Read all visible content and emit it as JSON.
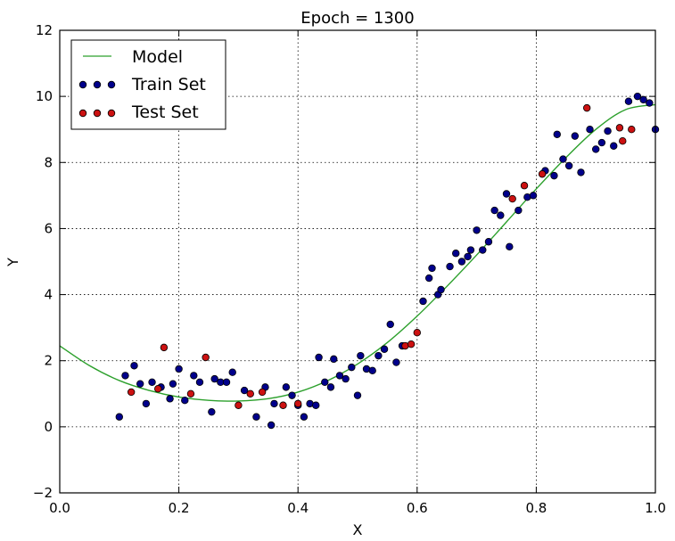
{
  "chart_data": {
    "type": "scatter",
    "title": "Epoch = 1300",
    "xlabel": "X",
    "ylabel": "Y",
    "xlim": [
      0.0,
      1.0
    ],
    "ylim": [
      -2,
      12
    ],
    "xticks": [
      "0.0",
      "0.2",
      "0.4",
      "0.6",
      "0.8",
      "1.0"
    ],
    "yticks": [
      "−2",
      "0",
      "2",
      "4",
      "6",
      "8",
      "10",
      "12"
    ],
    "grid": true,
    "legend_position": "top-left",
    "colors": {
      "model": "#2ca02c",
      "train": "#00008b",
      "test": "#cc1111"
    },
    "series": [
      {
        "name": "Model",
        "kind": "line",
        "x": [
          0.0,
          0.05,
          0.1,
          0.15,
          0.2,
          0.25,
          0.3,
          0.35,
          0.4,
          0.45,
          0.5,
          0.55,
          0.6,
          0.65,
          0.7,
          0.75,
          0.8,
          0.85,
          0.9,
          0.95,
          1.0
        ],
        "y": [
          2.45,
          1.85,
          1.4,
          1.1,
          0.9,
          0.8,
          0.78,
          0.85,
          1.05,
          1.4,
          1.9,
          2.55,
          3.35,
          4.25,
          5.2,
          6.2,
          7.2,
          8.15,
          9.0,
          9.6,
          9.75
        ]
      },
      {
        "name": "Train Set",
        "kind": "scatter",
        "x": [
          0.1,
          0.11,
          0.125,
          0.135,
          0.145,
          0.155,
          0.17,
          0.185,
          0.19,
          0.2,
          0.21,
          0.225,
          0.235,
          0.255,
          0.26,
          0.27,
          0.28,
          0.29,
          0.31,
          0.33,
          0.345,
          0.355,
          0.36,
          0.38,
          0.39,
          0.4,
          0.41,
          0.42,
          0.43,
          0.435,
          0.445,
          0.455,
          0.46,
          0.47,
          0.48,
          0.49,
          0.5,
          0.505,
          0.515,
          0.525,
          0.535,
          0.545,
          0.555,
          0.565,
          0.575,
          0.61,
          0.62,
          0.625,
          0.635,
          0.64,
          0.655,
          0.665,
          0.675,
          0.685,
          0.69,
          0.7,
          0.71,
          0.72,
          0.73,
          0.74,
          0.75,
          0.755,
          0.77,
          0.785,
          0.795,
          0.815,
          0.83,
          0.835,
          0.845,
          0.855,
          0.865,
          0.875,
          0.89,
          0.9,
          0.91,
          0.92,
          0.93,
          0.955,
          0.97,
          0.98,
          0.99,
          1.0
        ],
        "y": [
          0.3,
          1.55,
          1.85,
          1.3,
          0.7,
          1.35,
          1.2,
          0.85,
          1.3,
          1.75,
          0.8,
          1.55,
          1.35,
          0.45,
          1.45,
          1.35,
          1.35,
          1.65,
          1.1,
          0.3,
          1.2,
          0.05,
          0.7,
          1.2,
          0.95,
          0.65,
          0.3,
          0.7,
          0.65,
          2.1,
          1.35,
          1.2,
          2.05,
          1.55,
          1.45,
          1.8,
          0.95,
          2.15,
          1.75,
          1.7,
          2.15,
          2.35,
          3.1,
          1.95,
          2.45,
          3.8,
          4.5,
          4.8,
          4.0,
          4.15,
          4.85,
          5.25,
          5.0,
          5.15,
          5.35,
          5.95,
          5.35,
          5.6,
          6.55,
          6.4,
          7.05,
          5.45,
          6.55,
          6.95,
          7.0,
          7.75,
          7.6,
          8.85,
          8.1,
          7.9,
          8.8,
          7.7,
          9.0,
          8.4,
          8.6,
          8.95,
          8.5,
          9.85,
          10.0,
          9.9,
          9.8,
          9.0
        ]
      },
      {
        "name": "Test Set",
        "kind": "scatter",
        "x": [
          0.12,
          0.165,
          0.175,
          0.22,
          0.245,
          0.3,
          0.32,
          0.34,
          0.375,
          0.4,
          0.58,
          0.59,
          0.6,
          0.76,
          0.78,
          0.81,
          0.885,
          0.94,
          0.945,
          0.96
        ],
        "y": [
          1.05,
          1.15,
          2.4,
          1.0,
          2.1,
          0.65,
          1.0,
          1.05,
          0.65,
          0.7,
          2.45,
          2.5,
          2.85,
          6.9,
          7.3,
          7.65,
          9.65,
          9.05,
          8.65,
          9.0
        ]
      }
    ]
  }
}
